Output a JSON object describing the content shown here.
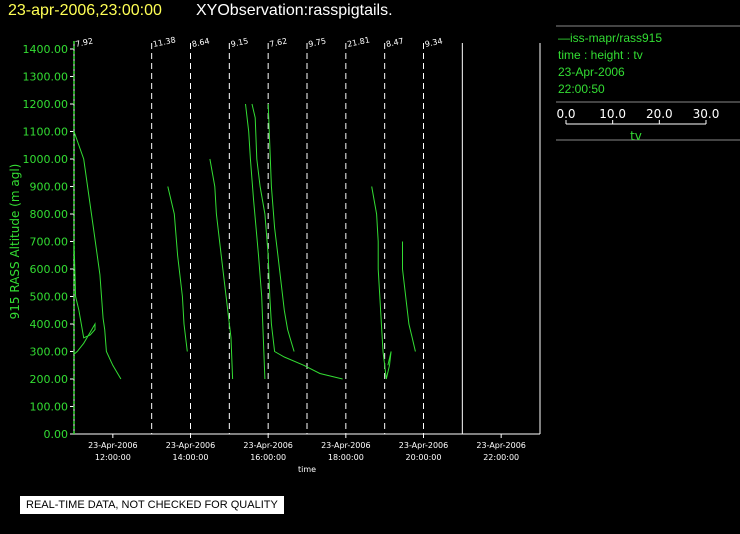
{
  "header": {
    "date_time": "23-apr-2006,23:00:00",
    "title": "XYObservation:rasspigtails."
  },
  "legend": {
    "series_label": "—iss-mapr/rass915",
    "axes_label": "time : height : tv",
    "date": "23-Apr-2006",
    "time": "22:00:50",
    "scale_ticks": [
      "0.0",
      "10.0",
      "20.0",
      "30.0"
    ],
    "scale_label": "tv"
  },
  "quality_note": "REAL-TIME DATA, NOT CHECKED FOR QUALITY",
  "colors": {
    "series": "#33dd33",
    "axis_text": "#33dd33",
    "title_date": "#ffff55",
    "title": "#ffffff"
  },
  "chart_data": {
    "type": "line",
    "ylabel": "915 RASS Altitude (m agl)",
    "xlabel": "time",
    "ylim": [
      0,
      1400
    ],
    "y_ticks": [
      "0.00",
      "100.00",
      "200.00",
      "300.00",
      "400.00",
      "500.00",
      "600.00",
      "700.00",
      "800.00",
      "900.00",
      "1000.00",
      "1100.00",
      "1200.00",
      "1300.00",
      "1400.00"
    ],
    "x_ticks": [
      {
        "hour": 12,
        "date": "23-Apr-2006",
        "time": "12:00:00"
      },
      {
        "hour": 14,
        "date": "23-Apr-2006",
        "time": "14:00:00"
      },
      {
        "hour": 16,
        "date": "23-Apr-2006",
        "time": "16:00:00"
      },
      {
        "hour": 18,
        "date": "23-Apr-2006",
        "time": "18:00:00"
      },
      {
        "hour": 20,
        "date": "23-Apr-2006",
        "time": "20:00:00"
      },
      {
        "hour": 22,
        "date": "23-Apr-2006",
        "time": "22:00:00"
      }
    ],
    "xlim_hours": [
      11.0,
      23.0
    ],
    "tv_per_hour": 12,
    "profile_markers": [
      {
        "hour": 11.0,
        "label": "7.92"
      },
      {
        "hour": 13.0,
        "label": "11.38"
      },
      {
        "hour": 14.0,
        "label": "8.64"
      },
      {
        "hour": 15.0,
        "label": "9.15"
      },
      {
        "hour": 16.0,
        "label": "7.62"
      },
      {
        "hour": 17.0,
        "label": "9.75"
      },
      {
        "hour": 18.0,
        "label": "21.81"
      },
      {
        "hour": 19.0,
        "label": "8.47"
      },
      {
        "hour": 20.0,
        "label": "9.34"
      },
      {
        "hour": 21.0,
        "label": ""
      },
      {
        "hour": 23.0,
        "label": ""
      }
    ],
    "profiles": [
      {
        "base_hour": 11.0,
        "points": [
          [
            0.0,
            1100
          ],
          [
            3.0,
            1000
          ],
          [
            6.0,
            750
          ],
          [
            8.0,
            580
          ],
          [
            8.5,
            500
          ],
          [
            9.0,
            420
          ],
          [
            9.5,
            380
          ],
          [
            10.0,
            300
          ],
          [
            12.0,
            250
          ],
          [
            14.5,
            200
          ]
        ]
      },
      {
        "base_hour": 11.0,
        "points": [
          [
            0.0,
            700
          ],
          [
            0.5,
            500
          ],
          [
            1.5,
            450
          ],
          [
            3.0,
            350
          ],
          [
            5.0,
            360
          ],
          [
            6.5,
            380
          ],
          [
            6.5,
            400
          ],
          [
            5.0,
            370
          ],
          [
            3.0,
            330
          ],
          [
            1.0,
            300
          ],
          [
            0.0,
            290
          ]
        ]
      },
      {
        "base_hour": 13.0,
        "points": [
          [
            5.0,
            900
          ],
          [
            7.0,
            800
          ],
          [
            8.0,
            650
          ],
          [
            9.5,
            500
          ],
          [
            10.0,
            400
          ],
          [
            11.0,
            300
          ]
        ]
      },
      {
        "base_hour": 14.0,
        "points": [
          [
            6.0,
            1000
          ],
          [
            7.5,
            900
          ],
          [
            8.0,
            800
          ],
          [
            9.5,
            650
          ],
          [
            11.0,
            500
          ],
          [
            12.5,
            350
          ],
          [
            13.0,
            200
          ]
        ]
      },
      {
        "base_hour": 15.0,
        "points": [
          [
            5.0,
            1200
          ],
          [
            6.0,
            1100
          ],
          [
            6.5,
            1000
          ],
          [
            7.5,
            850
          ],
          [
            9.0,
            650
          ],
          [
            10.0,
            500
          ],
          [
            10.5,
            350
          ],
          [
            11.0,
            200
          ]
        ]
      },
      {
        "base_hour": 15.0,
        "points": [
          [
            7.0,
            1200
          ],
          [
            8.0,
            1150
          ],
          [
            8.5,
            1000
          ],
          [
            9.5,
            900
          ],
          [
            11.0,
            800
          ],
          [
            12.0,
            650
          ],
          [
            12.5,
            500
          ],
          [
            13.0,
            400
          ],
          [
            14.0,
            300
          ],
          [
            17.0,
            280
          ],
          [
            23.0,
            250
          ],
          [
            28.0,
            220
          ],
          [
            35.0,
            200
          ]
        ]
      },
      {
        "base_hour": 16.0,
        "points": [
          [
            0.0,
            1200
          ],
          [
            0.5,
            1050
          ],
          [
            1.0,
            900
          ],
          [
            2.0,
            750
          ],
          [
            3.0,
            650
          ],
          [
            4.0,
            550
          ],
          [
            5.0,
            450
          ],
          [
            6.0,
            380
          ],
          [
            7.0,
            340
          ],
          [
            8.0,
            300
          ]
        ]
      },
      {
        "base_hour": 18.0,
        "points": [
          [
            8.0,
            900
          ],
          [
            9.5,
            800
          ],
          [
            10.0,
            700
          ],
          [
            10.0,
            600
          ],
          [
            10.5,
            500
          ],
          [
            11.0,
            400
          ],
          [
            11.5,
            300
          ],
          [
            12.0,
            250
          ],
          [
            12.5,
            200
          ],
          [
            13.5,
            250
          ],
          [
            14.0,
            300
          ],
          [
            13.0,
            250
          ]
        ]
      },
      {
        "base_hour": 19.0,
        "points": [
          [
            5.5,
            700
          ],
          [
            5.5,
            600
          ],
          [
            6.0,
            550
          ],
          [
            7.0,
            450
          ],
          [
            7.5,
            400
          ],
          [
            8.5,
            350
          ],
          [
            9.5,
            300
          ]
        ]
      }
    ]
  }
}
